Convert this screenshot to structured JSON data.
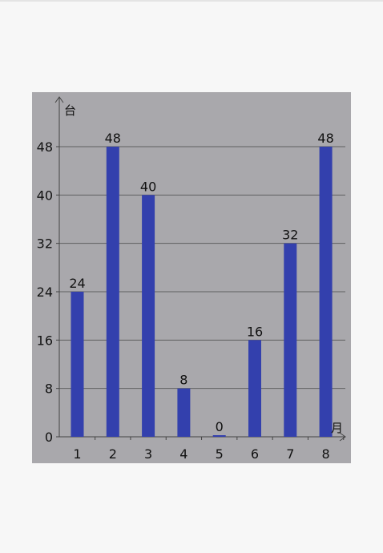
{
  "chart_data": {
    "type": "bar",
    "categories": [
      "1",
      "2",
      "3",
      "4",
      "5",
      "6",
      "7",
      "8"
    ],
    "values": [
      24,
      48,
      40,
      8,
      0,
      16,
      32,
      48
    ],
    "ylabel": "台",
    "xlabel": "月",
    "ylim": [
      0,
      48
    ],
    "yticks": [
      0,
      8,
      16,
      24,
      32,
      40,
      48
    ],
    "grid": true,
    "legend": "none",
    "colors": {
      "bar": "#3340ad",
      "panel_background": "#a9a8ac",
      "gridline": "#5f5f61",
      "axis": "#444444"
    }
  }
}
